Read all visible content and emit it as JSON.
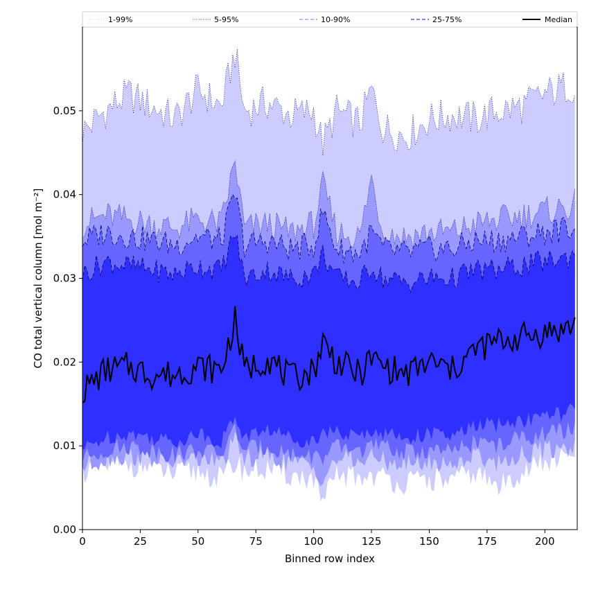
{
  "chart_data": {
    "type": "area",
    "xlabel": "Binned row index",
    "ylabel": "CO total vertical column [mol m⁻²]",
    "xlim": [
      0,
      214
    ],
    "ylim": [
      0,
      0.06
    ],
    "xticks": [
      0,
      25,
      50,
      75,
      100,
      125,
      150,
      175,
      200
    ],
    "xtick_labels": [
      "0",
      "25",
      "50",
      "75",
      "100",
      "125",
      "150",
      "175",
      "200"
    ],
    "yticks": [
      0.0,
      0.01,
      0.02,
      0.03,
      0.04,
      0.05
    ],
    "ytick_labels": [
      "0.00",
      "0.01",
      "0.02",
      "0.03",
      "0.04",
      "0.05"
    ],
    "legend_position": "top, spanning width",
    "legend": [
      {
        "label": "1-99%",
        "color": "#d4d4ff",
        "dash": "1,2"
      },
      {
        "label": "5-95%",
        "color": "#6666ff",
        "dash": "1,1.5"
      },
      {
        "label": "10-90%",
        "color": "#8c8cff",
        "dash": "5,3"
      },
      {
        "label": "25-75%",
        "color": "#3333ff",
        "dash": "5,3"
      },
      {
        "label": "Median",
        "color": "#000000",
        "dash": ""
      }
    ],
    "band_fill_colors": [
      "#ccccff",
      "#9999ff",
      "#6666ff",
      "#2f2fff"
    ],
    "x": [
      0,
      10,
      20,
      30,
      40,
      50,
      60,
      66,
      70,
      80,
      90,
      100,
      104,
      110,
      120,
      125,
      130,
      140,
      150,
      160,
      170,
      180,
      190,
      200,
      210,
      213
    ],
    "series": [
      {
        "name": "Median",
        "values": [
          0.0165,
          0.019,
          0.0195,
          0.0185,
          0.0185,
          0.0195,
          0.019,
          0.025,
          0.019,
          0.0205,
          0.018,
          0.019,
          0.0225,
          0.02,
          0.0185,
          0.0205,
          0.0195,
          0.0185,
          0.02,
          0.019,
          0.0215,
          0.0225,
          0.023,
          0.0235,
          0.024,
          0.0245
        ]
      },
      {
        "name": "25-75% upper",
        "values": [
          0.0305,
          0.032,
          0.0315,
          0.031,
          0.0305,
          0.0315,
          0.031,
          0.0355,
          0.03,
          0.031,
          0.03,
          0.0305,
          0.033,
          0.03,
          0.0295,
          0.0315,
          0.03,
          0.0295,
          0.03,
          0.03,
          0.031,
          0.031,
          0.0315,
          0.032,
          0.0325,
          0.033
        ]
      },
      {
        "name": "25-75% lower",
        "values": [
          0.0095,
          0.011,
          0.0115,
          0.011,
          0.0105,
          0.0115,
          0.0105,
          0.0135,
          0.011,
          0.012,
          0.011,
          0.0105,
          0.012,
          0.0115,
          0.011,
          0.012,
          0.0115,
          0.011,
          0.0115,
          0.011,
          0.0125,
          0.0125,
          0.013,
          0.0135,
          0.014,
          0.0145
        ]
      },
      {
        "name": "10-90% upper",
        "values": [
          0.0345,
          0.0355,
          0.035,
          0.0345,
          0.034,
          0.035,
          0.0345,
          0.04,
          0.034,
          0.0345,
          0.0335,
          0.034,
          0.038,
          0.0335,
          0.033,
          0.0355,
          0.0335,
          0.033,
          0.0335,
          0.0335,
          0.0345,
          0.0345,
          0.035,
          0.0355,
          0.036,
          0.0365
        ]
      },
      {
        "name": "10-90% lower",
        "values": [
          0.0085,
          0.0095,
          0.01,
          0.0095,
          0.009,
          0.0095,
          0.009,
          0.012,
          0.0095,
          0.01,
          0.009,
          0.0088,
          0.0085,
          0.0098,
          0.0095,
          0.01,
          0.0098,
          0.0092,
          0.0095,
          0.0092,
          0.0105,
          0.01,
          0.011,
          0.0115,
          0.0118,
          0.012
        ]
      },
      {
        "name": "5-95% upper",
        "values": [
          0.0365,
          0.0375,
          0.037,
          0.0365,
          0.036,
          0.037,
          0.0365,
          0.044,
          0.036,
          0.0365,
          0.0355,
          0.0365,
          0.041,
          0.0355,
          0.035,
          0.042,
          0.0355,
          0.035,
          0.0355,
          0.0355,
          0.0365,
          0.037,
          0.0375,
          0.038,
          0.0385,
          0.039
        ]
      },
      {
        "name": "5-95% lower",
        "values": [
          0.0075,
          0.0085,
          0.0088,
          0.0085,
          0.008,
          0.0085,
          0.008,
          0.0105,
          0.0085,
          0.0088,
          0.008,
          0.0075,
          0.006,
          0.0085,
          0.0082,
          0.0085,
          0.0083,
          0.0078,
          0.008,
          0.0078,
          0.009,
          0.008,
          0.009,
          0.0095,
          0.0098,
          0.01
        ]
      },
      {
        "name": "1-99% upper",
        "values": [
          0.0475,
          0.05,
          0.052,
          0.0505,
          0.049,
          0.0525,
          0.0505,
          0.057,
          0.05,
          0.051,
          0.0495,
          0.05,
          0.046,
          0.05,
          0.0485,
          0.0525,
          0.048,
          0.047,
          0.049,
          0.0495,
          0.049,
          0.05,
          0.0505,
          0.052,
          0.053,
          0.053
        ]
      },
      {
        "name": "1-99% lower",
        "values": [
          0.007,
          0.0075,
          0.0078,
          0.0075,
          0.0065,
          0.007,
          0.006,
          0.008,
          0.007,
          0.0072,
          0.0065,
          0.006,
          0.003,
          0.0065,
          0.0062,
          0.0065,
          0.0062,
          0.0055,
          0.006,
          0.0058,
          0.0068,
          0.005,
          0.007,
          0.008,
          0.0085,
          0.009
        ]
      }
    ]
  }
}
